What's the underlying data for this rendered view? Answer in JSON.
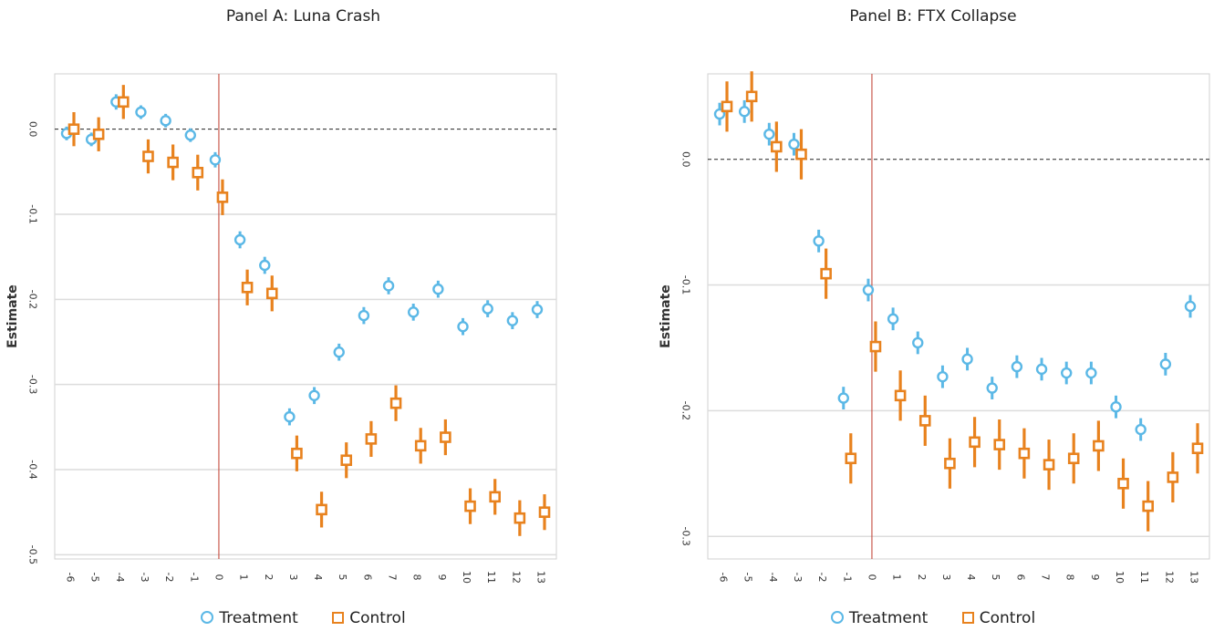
{
  "chart_data": [
    {
      "type": "scatter",
      "title": "Panel A: Luna Crash",
      "ylabel": "Estimate",
      "xlabel": "",
      "x": [
        -6,
        -5,
        -4,
        -3,
        -2,
        -1,
        0,
        1,
        2,
        3,
        4,
        5,
        6,
        7,
        8,
        9,
        10,
        11,
        12,
        13
      ],
      "xticks": [
        "-6",
        "-5",
        "-4",
        "-3",
        "-2",
        "-1",
        "0",
        "1",
        "2",
        "3",
        "4",
        "5",
        "6",
        "7",
        "8",
        "9",
        "10",
        "11",
        "12",
        "13"
      ],
      "ylim": [
        -0.505,
        0.065
      ],
      "yticks": [
        0.0,
        -0.1,
        -0.2,
        -0.3,
        -0.4,
        -0.5
      ],
      "ytick_labels": [
        "0.0",
        "-0.1",
        "-0.2",
        "-0.3",
        "-0.4",
        "-0.5"
      ],
      "reference_line_y": 0.0,
      "event_line_x": 0,
      "grid": true,
      "legend_position": "bottom",
      "series": [
        {
          "name": "Treatment",
          "marker": "circle",
          "color": "#5bb8e6",
          "values": [
            -0.005,
            -0.012,
            0.032,
            0.02,
            0.01,
            -0.007,
            -0.036,
            -0.13,
            -0.16,
            -0.338,
            -0.313,
            -0.262,
            -0.219,
            -0.184,
            -0.215,
            -0.188,
            -0.232,
            -0.211,
            -0.225,
            -0.212
          ],
          "ci_low": [
            -0.013,
            -0.02,
            0.023,
            0.012,
            0.002,
            -0.015,
            -0.045,
            -0.14,
            -0.17,
            -0.348,
            -0.323,
            -0.272,
            -0.229,
            -0.194,
            -0.225,
            -0.198,
            -0.242,
            -0.221,
            -0.235,
            -0.222
          ],
          "ci_high": [
            0.003,
            -0.004,
            0.041,
            0.028,
            0.018,
            0.001,
            -0.027,
            -0.12,
            -0.15,
            -0.328,
            -0.303,
            -0.252,
            -0.209,
            -0.174,
            -0.205,
            -0.178,
            -0.222,
            -0.201,
            -0.215,
            -0.202
          ]
        },
        {
          "name": "Control",
          "marker": "square",
          "color": "#e8821e",
          "values": [
            0.0,
            -0.006,
            0.032,
            -0.032,
            -0.039,
            -0.051,
            -0.08,
            -0.186,
            -0.193,
            -0.381,
            -0.447,
            -0.389,
            -0.364,
            -0.322,
            -0.372,
            -0.362,
            -0.443,
            -0.432,
            -0.457,
            -0.45
          ],
          "ci_low": [
            -0.02,
            -0.026,
            0.012,
            -0.052,
            -0.06,
            -0.072,
            -0.101,
            -0.207,
            -0.214,
            -0.402,
            -0.468,
            -0.41,
            -0.385,
            -0.343,
            -0.393,
            -0.383,
            -0.464,
            -0.453,
            -0.478,
            -0.471
          ],
          "ci_high": [
            0.02,
            0.014,
            0.052,
            -0.012,
            -0.018,
            -0.03,
            -0.059,
            -0.165,
            -0.172,
            -0.36,
            -0.426,
            -0.368,
            -0.343,
            -0.301,
            -0.351,
            -0.341,
            -0.422,
            -0.411,
            -0.436,
            -0.429
          ]
        }
      ]
    },
    {
      "type": "scatter",
      "title": "Panel B: FTX Collapse",
      "ylabel": "Estimate",
      "xlabel": "",
      "x": [
        -6,
        -5,
        -4,
        -3,
        -2,
        -1,
        0,
        1,
        2,
        3,
        4,
        5,
        6,
        7,
        8,
        9,
        10,
        11,
        12,
        13
      ],
      "xticks": [
        "-6",
        "-5",
        "-4",
        "-3",
        "-2",
        "-1",
        "0",
        "1",
        "2",
        "3",
        "4",
        "5",
        "6",
        "7",
        "8",
        "9",
        "10",
        "11",
        "12",
        "13"
      ],
      "ylim": [
        -0.318,
        0.068
      ],
      "yticks": [
        0.0,
        -0.1,
        -0.2,
        -0.3
      ],
      "ytick_labels": [
        "0.0",
        "-0.1",
        "-0.2",
        "-0.3"
      ],
      "reference_line_y": 0.0,
      "event_line_x": 0,
      "grid": true,
      "legend_position": "bottom",
      "series": [
        {
          "name": "Treatment",
          "marker": "circle",
          "color": "#5bb8e6",
          "values": [
            0.036,
            0.038,
            0.02,
            0.012,
            -0.065,
            -0.19,
            -0.104,
            -0.127,
            -0.146,
            -0.173,
            -0.159,
            -0.182,
            -0.165,
            -0.167,
            -0.17,
            -0.17,
            -0.197,
            -0.215,
            -0.163,
            -0.117
          ],
          "ci_low": [
            0.027,
            0.029,
            0.011,
            0.003,
            -0.074,
            -0.199,
            -0.113,
            -0.136,
            -0.155,
            -0.182,
            -0.168,
            -0.191,
            -0.174,
            -0.176,
            -0.179,
            -0.179,
            -0.206,
            -0.224,
            -0.172,
            -0.126
          ],
          "ci_high": [
            0.045,
            0.047,
            0.029,
            0.021,
            -0.056,
            -0.181,
            -0.095,
            -0.118,
            -0.137,
            -0.164,
            -0.15,
            -0.173,
            -0.156,
            -0.158,
            -0.161,
            -0.161,
            -0.188,
            -0.206,
            -0.154,
            -0.108
          ],
          "label_color": "#5bb8e6"
        },
        {
          "name": "Control",
          "marker": "square",
          "color": "#e8821e",
          "values": [
            0.042,
            0.05,
            0.01,
            0.004,
            -0.091,
            -0.238,
            -0.149,
            -0.188,
            -0.208,
            -0.242,
            -0.225,
            -0.227,
            -0.234,
            -0.243,
            -0.238,
            -0.228,
            -0.258,
            -0.276,
            -0.253,
            -0.23
          ],
          "ci_low": [
            0.022,
            0.03,
            -0.01,
            -0.016,
            -0.111,
            -0.258,
            -0.169,
            -0.208,
            -0.228,
            -0.262,
            -0.245,
            -0.247,
            -0.254,
            -0.263,
            -0.258,
            -0.248,
            -0.278,
            -0.296,
            -0.273,
            -0.25
          ],
          "ci_high": [
            0.062,
            0.07,
            0.03,
            0.024,
            -0.071,
            -0.218,
            -0.129,
            -0.168,
            -0.188,
            -0.222,
            -0.205,
            -0.207,
            -0.214,
            -0.223,
            -0.218,
            -0.208,
            -0.238,
            -0.256,
            -0.233,
            -0.21
          ]
        }
      ]
    }
  ],
  "colors": {
    "treatment": "#5bb8e6",
    "control": "#e8821e",
    "event_line": "#c0392b",
    "reference_line": "#222222",
    "grid": "#dcdcdc",
    "frame": "#d0d0d0"
  }
}
